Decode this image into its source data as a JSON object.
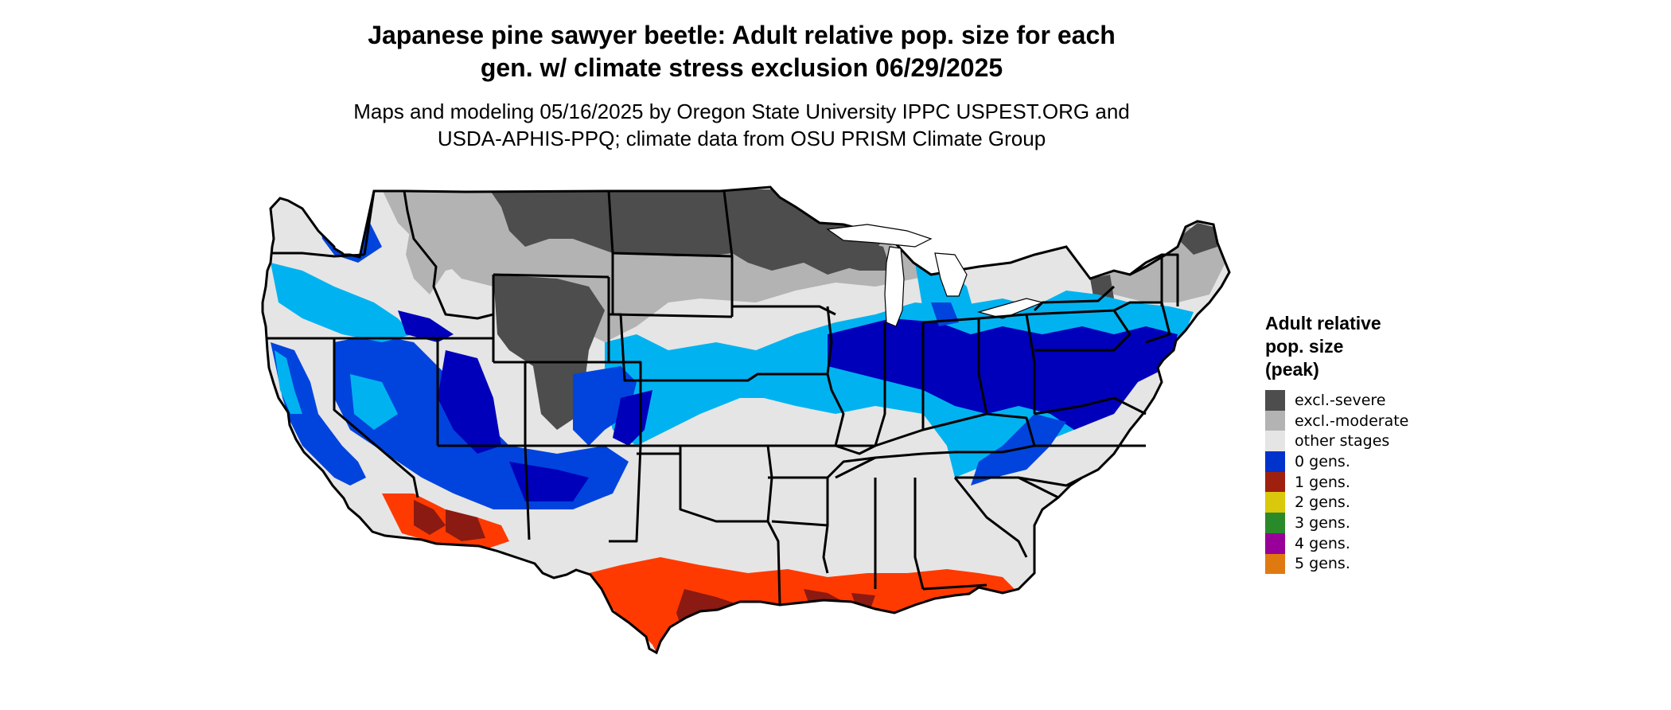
{
  "header": {
    "title_line1": "Japanese pine sawyer beetle: Adult relative pop. size for each",
    "title_line2": "gen. w/ climate stress exclusion 06/29/2025",
    "subtitle_line1": "Maps and modeling 05/16/2025 by Oregon State University IPPC USPEST.ORG and",
    "subtitle_line2": "USDA-APHIS-PPQ; climate data from OSU PRISM Climate Group"
  },
  "legend": {
    "title_line1": "Adult relative",
    "title_line2": "pop. size",
    "title_line3": "(peak)",
    "items": [
      {
        "label": "excl.-severe",
        "color": "#4d4d4d"
      },
      {
        "label": "excl.-moderate",
        "color": "#b3b3b3"
      },
      {
        "label": "other stages",
        "color": "#e5e5e5"
      },
      {
        "label": "0 gens.",
        "color": "#0033cc"
      },
      {
        "label": "1 gens.",
        "color": "#a0200f"
      },
      {
        "label": "2 gens.",
        "color": "#d9c80b"
      },
      {
        "label": "3 gens.",
        "color": "#2a8a2a"
      },
      {
        "label": "4 gens.",
        "color": "#990099"
      },
      {
        "label": "5 gens.",
        "color": "#e07a10"
      }
    ]
  },
  "map_colors": {
    "land": "#e5e5e5",
    "excl_severe": "#4d4d4d",
    "excl_moderate": "#b3b3b3",
    "blue_light": "#00b3f0",
    "blue_mid": "#0044dd",
    "blue_dark": "#0000bb",
    "red_dark": "#8b1a12",
    "red_orange": "#ff3a00",
    "border": "#000000"
  }
}
